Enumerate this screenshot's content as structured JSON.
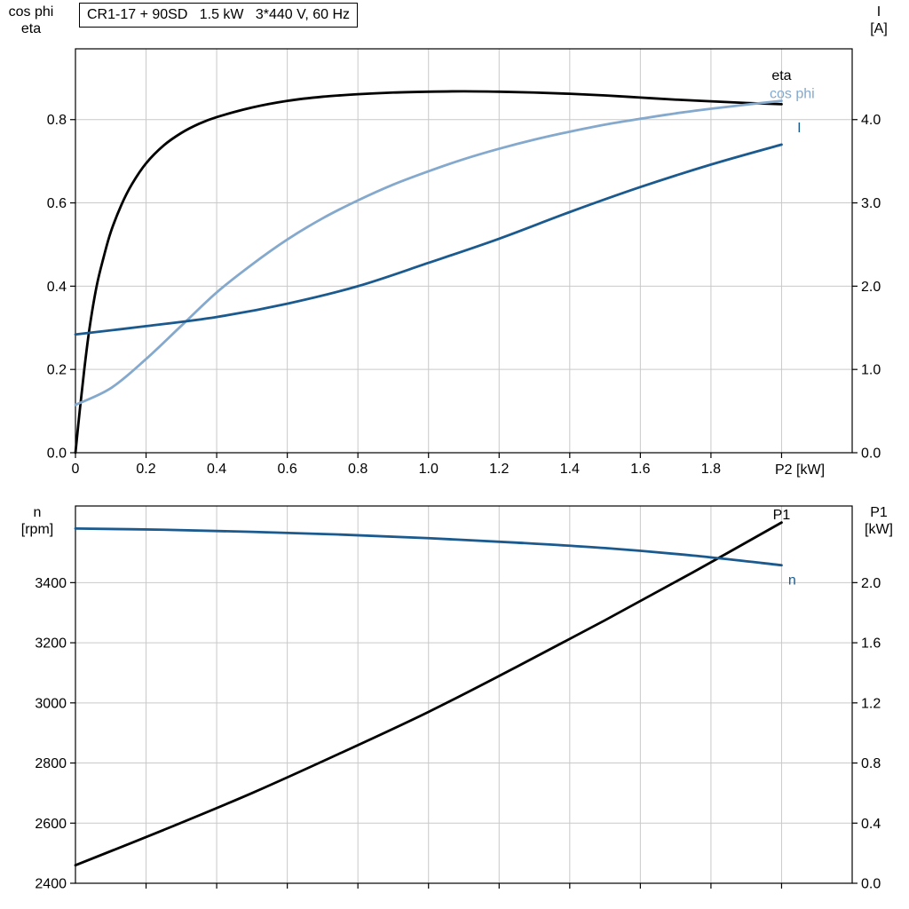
{
  "title_box": "CR1-17 + 90SD   1.5 kW   3*440 V, 60 Hz",
  "labels": {
    "top_left": [
      "cos phi",
      "eta"
    ],
    "top_right": [
      "I",
      "[A]"
    ],
    "bottom_left": [
      "n",
      "[rpm]"
    ],
    "bottom_right": [
      "P1",
      "[kW]"
    ],
    "x_axis_top": "P2 [kW]"
  },
  "colors": {
    "black": "#000000",
    "dark_blue": "#1b5a8e",
    "light_blue": "#84a9cd",
    "grid": "#c9c9c9"
  },
  "chart_data": [
    {
      "type": "line",
      "name": "motor-electrical-curves",
      "x_axis": {
        "range": [
          0,
          2.2
        ],
        "grid": [
          0.2,
          0.4,
          0.6,
          0.8,
          1.0,
          1.2,
          1.4,
          1.6,
          1.8,
          2.0
        ],
        "tick_labels": [
          [
            "0",
            0
          ],
          [
            "0.2",
            0.2
          ],
          [
            "0.4",
            0.4
          ],
          [
            "0.6",
            0.6
          ],
          [
            "0.8",
            0.8
          ],
          [
            "1.0",
            1.0
          ],
          [
            "1.2",
            1.2
          ],
          [
            "1.4",
            1.4
          ],
          [
            "1.6",
            1.6
          ],
          [
            "1.8",
            1.8
          ]
        ],
        "show_labels": true,
        "label": "P2 [kW]"
      },
      "left_axis": {
        "range": [
          0,
          0.97
        ],
        "grid": [
          0.2,
          0.4,
          0.6,
          0.8
        ],
        "tick_labels": [
          [
            "0.0",
            0
          ],
          [
            "0.2",
            0.2
          ],
          [
            "0.4",
            0.4
          ],
          [
            "0.6",
            0.6
          ],
          [
            "0.8",
            0.8
          ]
        ],
        "label": "cos phi / eta"
      },
      "right_axis": {
        "range": [
          0,
          4.85
        ],
        "tick_labels": [
          [
            "0.0",
            0
          ],
          [
            "1.0",
            1.0
          ],
          [
            "2.0",
            2.0
          ],
          [
            "3.0",
            3.0
          ],
          [
            "4.0",
            4.0
          ]
        ],
        "label": "I [A]"
      },
      "series": [
        {
          "name": "eta",
          "axis": "left",
          "color": "#000000",
          "label": {
            "text": "eta",
            "x": 2.0,
            "y": 0.895
          },
          "points": [
            [
              0,
              0
            ],
            [
              0.012,
              0.1
            ],
            [
              0.025,
              0.2
            ],
            [
              0.04,
              0.3
            ],
            [
              0.06,
              0.4
            ],
            [
              0.08,
              0.47
            ],
            [
              0.1,
              0.53
            ],
            [
              0.13,
              0.595
            ],
            [
              0.16,
              0.645
            ],
            [
              0.2,
              0.695
            ],
            [
              0.25,
              0.738
            ],
            [
              0.3,
              0.768
            ],
            [
              0.35,
              0.79
            ],
            [
              0.4,
              0.806
            ],
            [
              0.5,
              0.829
            ],
            [
              0.6,
              0.845
            ],
            [
              0.7,
              0.855
            ],
            [
              0.8,
              0.861
            ],
            [
              0.9,
              0.865
            ],
            [
              1.0,
              0.867
            ],
            [
              1.1,
              0.868
            ],
            [
              1.2,
              0.867
            ],
            [
              1.3,
              0.865
            ],
            [
              1.4,
              0.862
            ],
            [
              1.5,
              0.858
            ],
            [
              1.6,
              0.853
            ],
            [
              1.7,
              0.848
            ],
            [
              1.8,
              0.844
            ],
            [
              1.9,
              0.84
            ],
            [
              2.0,
              0.837
            ]
          ]
        },
        {
          "name": "cos phi",
          "axis": "left",
          "color": "#84a9cd",
          "label": {
            "text": "cos phi",
            "x": 2.03,
            "y": 0.852
          },
          "points": [
            [
              0,
              0.115
            ],
            [
              0.1,
              0.155
            ],
            [
              0.2,
              0.225
            ],
            [
              0.3,
              0.305
            ],
            [
              0.4,
              0.385
            ],
            [
              0.5,
              0.452
            ],
            [
              0.6,
              0.512
            ],
            [
              0.7,
              0.563
            ],
            [
              0.8,
              0.606
            ],
            [
              0.9,
              0.644
            ],
            [
              1.0,
              0.676
            ],
            [
              1.1,
              0.705
            ],
            [
              1.2,
              0.73
            ],
            [
              1.3,
              0.752
            ],
            [
              1.4,
              0.771
            ],
            [
              1.5,
              0.788
            ],
            [
              1.6,
              0.802
            ],
            [
              1.7,
              0.815
            ],
            [
              1.8,
              0.826
            ],
            [
              1.9,
              0.836
            ],
            [
              2.0,
              0.845
            ]
          ]
        },
        {
          "name": "I",
          "axis": "right",
          "color": "#1b5a8e",
          "label": {
            "text": "I",
            "x": 2.05,
            "y": 3.85
          },
          "points": [
            [
              0,
              1.42
            ],
            [
              0.2,
              1.52
            ],
            [
              0.4,
              1.63
            ],
            [
              0.6,
              1.79
            ],
            [
              0.8,
              2.0
            ],
            [
              1.0,
              2.28
            ],
            [
              1.2,
              2.57
            ],
            [
              1.4,
              2.89
            ],
            [
              1.6,
              3.19
            ],
            [
              1.8,
              3.46
            ],
            [
              2.0,
              3.7
            ]
          ]
        }
      ]
    },
    {
      "type": "line",
      "name": "speed-and-input-power-curves",
      "x_axis": {
        "range": [
          0,
          2.2
        ],
        "grid": [
          0.2,
          0.4,
          0.6,
          0.8,
          1.0,
          1.2,
          1.4,
          1.6,
          1.8,
          2.0
        ],
        "tick_labels": [],
        "show_labels": false,
        "label": ""
      },
      "left_axis": {
        "range": [
          2400,
          3655
        ],
        "grid": [
          2600,
          2800,
          3000,
          3200,
          3400
        ],
        "tick_labels": [
          [
            "2400",
            2400
          ],
          [
            "2600",
            2600
          ],
          [
            "2800",
            2800
          ],
          [
            "3000",
            3000
          ],
          [
            "3200",
            3200
          ],
          [
            "3400",
            3400
          ]
        ],
        "label": "n [rpm]"
      },
      "right_axis": {
        "range": [
          0,
          2.51
        ],
        "tick_labels": [
          [
            "0.0",
            0
          ],
          [
            "0.4",
            0.4
          ],
          [
            "0.8",
            0.8
          ],
          [
            "1.2",
            1.2
          ],
          [
            "1.6",
            1.6
          ],
          [
            "2.0",
            2.0
          ]
        ],
        "label": "P1 [kW]"
      },
      "series": [
        {
          "name": "P1",
          "axis": "right",
          "color": "#000000",
          "label": {
            "text": "P1",
            "x": 2.0,
            "y": 2.42
          },
          "points": [
            [
              0,
              0.12
            ],
            [
              0.25,
              0.355
            ],
            [
              0.5,
              0.6
            ],
            [
              0.75,
              0.865
            ],
            [
              1.0,
              1.14
            ],
            [
              1.25,
              1.44
            ],
            [
              1.5,
              1.75
            ],
            [
              1.75,
              2.07
            ],
            [
              2.0,
              2.4
            ]
          ]
        },
        {
          "name": "n",
          "axis": "left",
          "color": "#1b5a8e",
          "label": {
            "text": "n",
            "x": 2.03,
            "y": 3394
          },
          "points": [
            [
              0,
              3580
            ],
            [
              0.25,
              3576
            ],
            [
              0.5,
              3569
            ],
            [
              0.75,
              3560
            ],
            [
              1.0,
              3548
            ],
            [
              1.25,
              3533
            ],
            [
              1.5,
              3515
            ],
            [
              1.75,
              3490
            ],
            [
              2.0,
              3458
            ]
          ]
        }
      ]
    }
  ]
}
